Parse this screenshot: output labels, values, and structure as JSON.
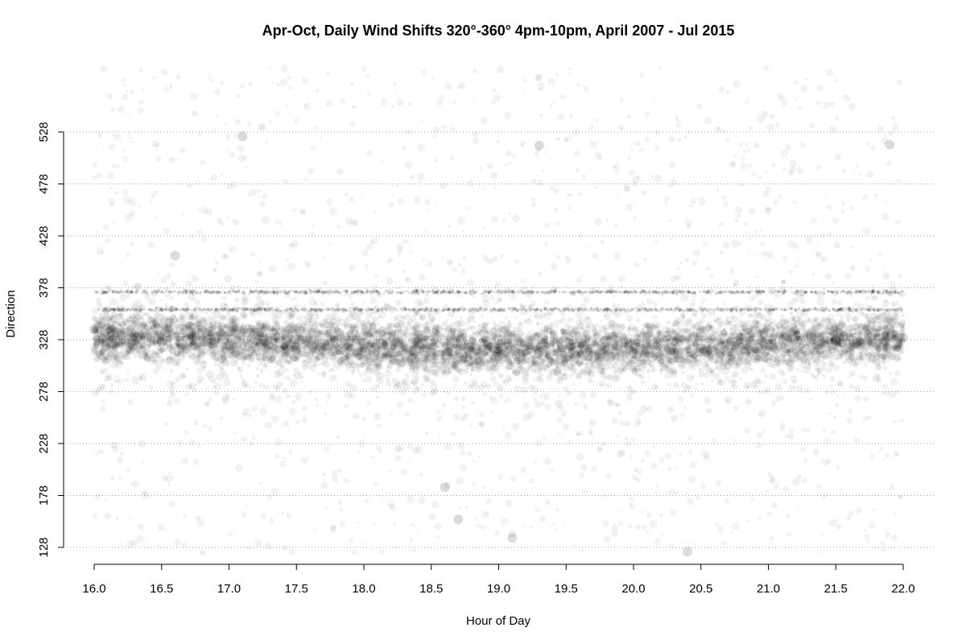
{
  "chart_data": {
    "type": "scatter",
    "title": "Apr-Oct, Daily Wind Shifts 320°-360° 4pm-10pm, April 2007 - Jul 2015",
    "xlabel": "Hour of Day",
    "ylabel": "Direction",
    "xlim": [
      16.0,
      22.0
    ],
    "ylim": [
      128,
      528
    ],
    "x_ticks": [
      16.0,
      16.5,
      17.0,
      17.5,
      18.0,
      18.5,
      19.0,
      19.5,
      20.0,
      20.5,
      21.0,
      21.5,
      22.0
    ],
    "x_tick_labels": [
      "16.0",
      "16.5",
      "17.0",
      "17.5",
      "18.0",
      "18.5",
      "19.0",
      "19.5",
      "20.0",
      "20.5",
      "21.0",
      "21.5",
      "22.0"
    ],
    "y_ticks": [
      128,
      178,
      228,
      278,
      328,
      378,
      428,
      478,
      528
    ],
    "y_tick_labels": [
      "128",
      "178",
      "228",
      "278",
      "328",
      "378",
      "428",
      "478",
      "528"
    ],
    "grid": "horizontal dotted",
    "point_color": "#000000",
    "dense_band": {
      "x": [
        16.0,
        22.0
      ],
      "y_center": 325,
      "y_spread": 20
    },
    "horizontal_streaks": [
      357,
      374
    ],
    "representative_points": [
      {
        "x": 16.0,
        "y": 338
      },
      {
        "x": 16.2,
        "y": 332
      },
      {
        "x": 16.5,
        "y": 326
      },
      {
        "x": 17.0,
        "y": 322
      },
      {
        "x": 17.5,
        "y": 318
      },
      {
        "x": 18.0,
        "y": 320
      },
      {
        "x": 18.5,
        "y": 316
      },
      {
        "x": 19.0,
        "y": 312
      },
      {
        "x": 19.5,
        "y": 310
      },
      {
        "x": 20.0,
        "y": 315
      },
      {
        "x": 20.5,
        "y": 320
      },
      {
        "x": 21.0,
        "y": 324
      },
      {
        "x": 21.5,
        "y": 328
      },
      {
        "x": 22.0,
        "y": 330
      },
      {
        "x": 17.1,
        "y": 524
      },
      {
        "x": 19.3,
        "y": 515
      },
      {
        "x": 16.6,
        "y": 409
      },
      {
        "x": 18.6,
        "y": 186
      },
      {
        "x": 18.7,
        "y": 155
      },
      {
        "x": 19.1,
        "y": 137
      },
      {
        "x": 20.4,
        "y": 124
      },
      {
        "x": 21.9,
        "y": 516
      }
    ]
  }
}
